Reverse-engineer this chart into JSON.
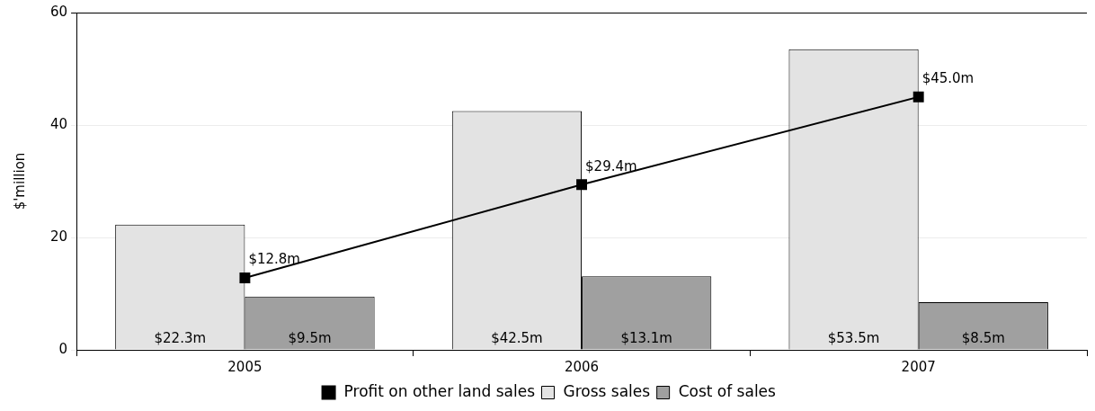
{
  "chart_data": {
    "type": "bar",
    "ylabel": "$'million",
    "categories": [
      "2005",
      "2006",
      "2007"
    ],
    "series": [
      {
        "name": "Gross sales",
        "color": "#e3e3e3",
        "values": [
          22.3,
          42.5,
          53.5
        ],
        "value_labels": [
          "$22.3m",
          "$42.5m",
          "$53.5m"
        ]
      },
      {
        "name": "Cost of sales",
        "color": "#a0a0a0",
        "values": [
          9.5,
          13.1,
          8.5
        ],
        "value_labels": [
          "$9.5m",
          "$13.1m",
          "$8.5m"
        ]
      },
      {
        "name": "Profit on other land sales",
        "type": "line",
        "color": "#000000",
        "values": [
          12.8,
          29.4,
          45.0
        ],
        "value_labels": [
          "$12.8m",
          "$29.4m",
          "$45.0m"
        ]
      }
    ],
    "ylim": [
      0,
      60
    ],
    "yticks": [
      0,
      20,
      40,
      60
    ],
    "grid": "y",
    "legend": "bottom",
    "marker": "square",
    "line_style": "solid"
  }
}
